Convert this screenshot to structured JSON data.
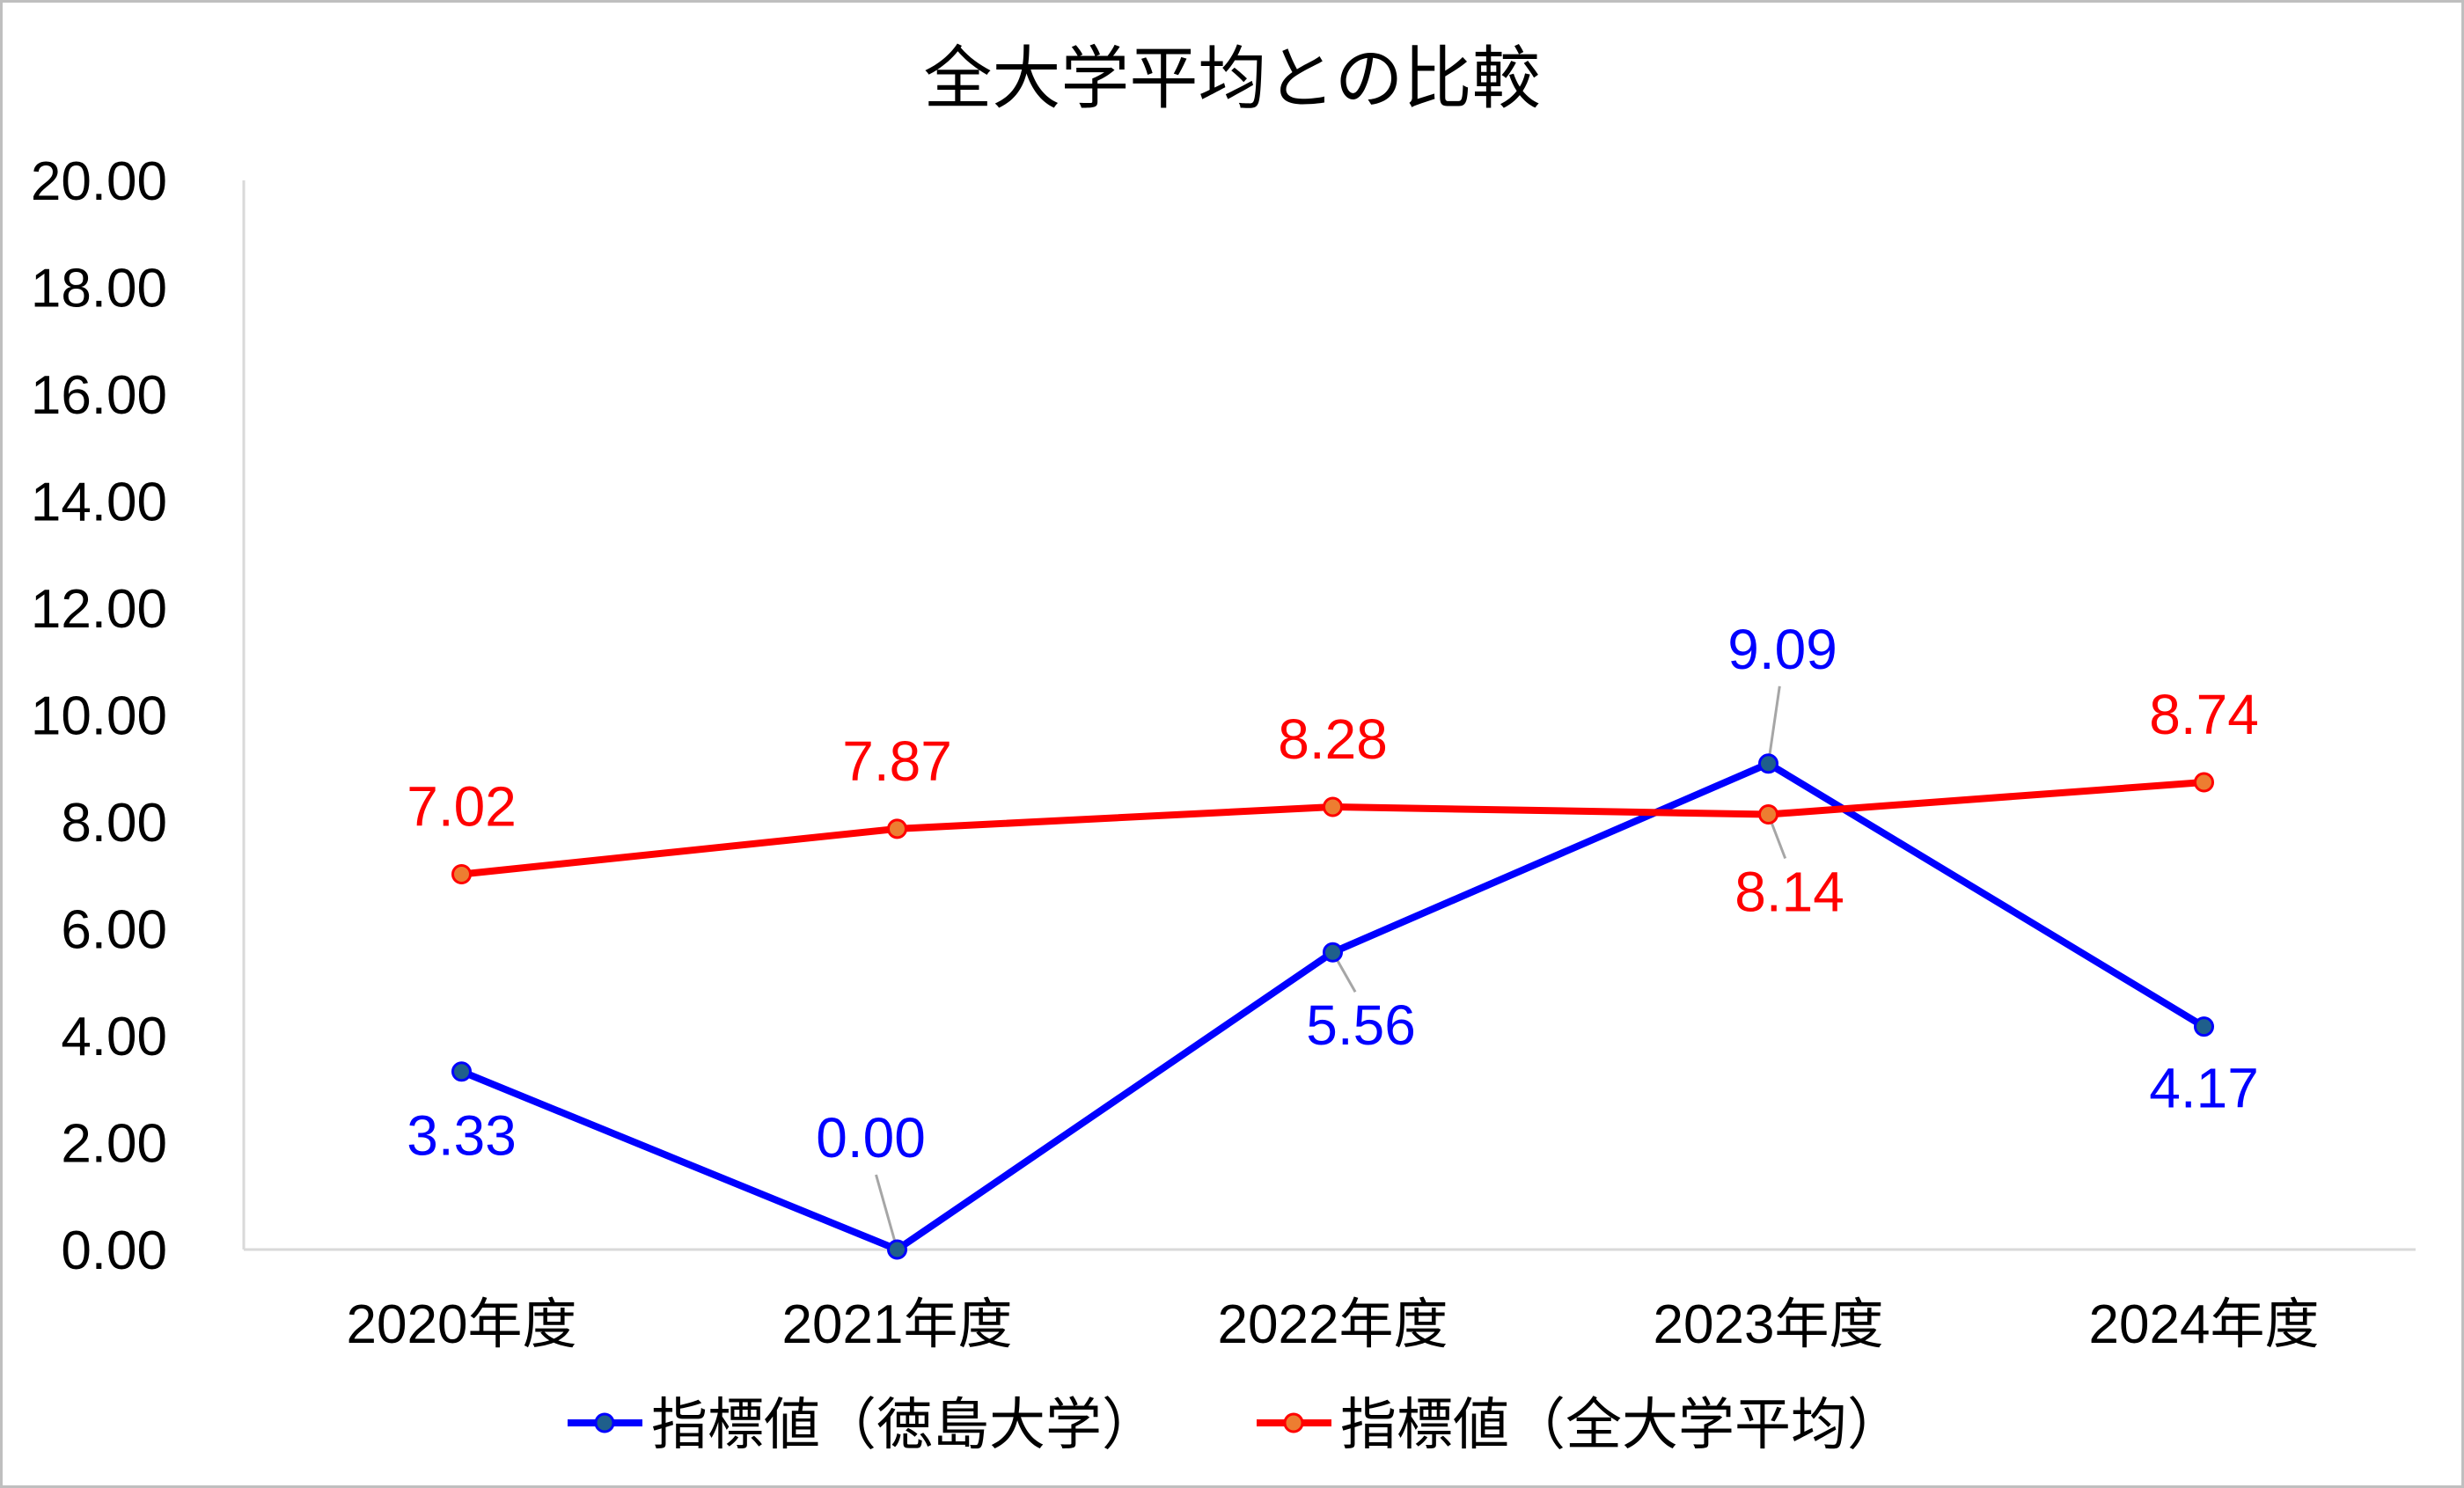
{
  "chart_data": {
    "type": "line",
    "title": "全大学平均との比較",
    "xlabel": "",
    "ylabel": "",
    "categories": [
      "2020年度",
      "2021年度",
      "2022年度",
      "2023年度",
      "2024年度"
    ],
    "ylim": [
      0,
      20
    ],
    "yticks": [
      "0.00",
      "2.00",
      "4.00",
      "6.00",
      "8.00",
      "10.00",
      "12.00",
      "14.00",
      "16.00",
      "18.00",
      "20.00"
    ],
    "grid": false,
    "legend_position": "bottom",
    "series": [
      {
        "name": "指標値（徳島大学）",
        "values": [
          3.33,
          0.0,
          5.56,
          9.09,
          4.17
        ],
        "labels": [
          "3.33",
          "0.00",
          "5.56",
          "9.09",
          "4.17"
        ],
        "line_color": "#0000ff",
        "marker_color": "#1f5f8b"
      },
      {
        "name": "指標値（全大学平均）",
        "values": [
          7.02,
          7.87,
          8.28,
          8.14,
          8.74
        ],
        "labels": [
          "7.02",
          "7.87",
          "8.28",
          "8.14",
          "8.74"
        ],
        "line_color": "#ff0000",
        "marker_color": "#ed7d31"
      }
    ]
  }
}
